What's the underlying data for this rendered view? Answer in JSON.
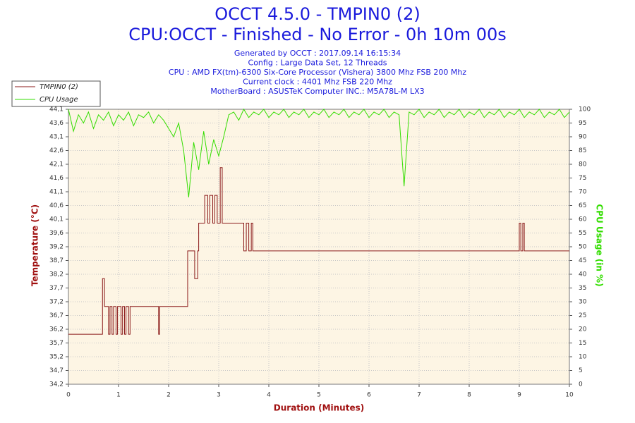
{
  "chart_data": {
    "type": "line",
    "title": "OCCT 4.5.0 - TMPIN0 (2)",
    "subtitle": "CPU:OCCT - Finished - No Error - 0h 10m 00s",
    "info": [
      "Generated by OCCT : 2017.09.14 16:15:34",
      "Config : Large Data Set, 12 Threads",
      "CPU : AMD FX(tm)-6300 Six-Core Processor (Vishera) 3800 Mhz FSB 200 Mhz",
      "Current clock : 4401 Mhz FSB 220 Mhz",
      "MotherBoard : ASUSTeK Computer INC.: M5A78L-M LX3"
    ],
    "xlabel": "Duration (Minutes)",
    "ylabel": "Temperature (°C)",
    "y2label": "CPU Usage (in %)",
    "xlim": [
      0,
      10
    ],
    "xticks": [
      0,
      1,
      2,
      3,
      4,
      5,
      6,
      7,
      8,
      9,
      10
    ],
    "ylim": [
      34.2,
      44.1
    ],
    "yticks": [
      {
        "value": 34.2,
        "label": "34,2"
      },
      {
        "value": 34.695,
        "label": "34,7"
      },
      {
        "value": 35.19,
        "label": "35,2"
      },
      {
        "value": 35.685,
        "label": "35,7"
      },
      {
        "value": 36.18,
        "label": "36,2"
      },
      {
        "value": 36.675,
        "label": "36,7"
      },
      {
        "value": 37.17,
        "label": "37,2"
      },
      {
        "value": 37.665,
        "label": "37,7"
      },
      {
        "value": 38.16,
        "label": "38,2"
      },
      {
        "value": 38.655,
        "label": "38,7"
      },
      {
        "value": 39.15,
        "label": "39,2"
      },
      {
        "value": 39.645,
        "label": "39,6"
      },
      {
        "value": 40.14,
        "label": "40,1"
      },
      {
        "value": 40.635,
        "label": "40,6"
      },
      {
        "value": 41.13,
        "label": "41,1"
      },
      {
        "value": 41.625,
        "label": "41,6"
      },
      {
        "value": 42.12,
        "label": "42,1"
      },
      {
        "value": 42.615,
        "label": "42,6"
      },
      {
        "value": 43.11,
        "label": "43,1"
      },
      {
        "value": 43.605,
        "label": "43,6"
      },
      {
        "value": 44.1,
        "label": "44,1"
      }
    ],
    "y2lim": [
      0,
      100
    ],
    "y2ticks": [
      0,
      5,
      10,
      15,
      20,
      25,
      30,
      35,
      40,
      45,
      50,
      55,
      60,
      65,
      70,
      75,
      80,
      85,
      90,
      95,
      100
    ],
    "grid": true,
    "legend": "top-left",
    "series": [
      {
        "name": "TMPIN0 (2)",
        "color": "#8b1a1a",
        "axis": "y",
        "x": [
          0,
          0.68,
          0.68,
          0.72,
          0.72,
          0.8,
          0.8,
          0.83,
          0.83,
          0.87,
          0.87,
          0.9,
          0.9,
          0.95,
          0.95,
          0.98,
          0.98,
          1.05,
          1.05,
          1.08,
          1.08,
          1.12,
          1.12,
          1.15,
          1.15,
          1.2,
          1.2,
          1.23,
          1.23,
          1.8,
          1.8,
          1.82,
          1.82,
          2.38,
          2.38,
          2.52,
          2.52,
          2.58,
          2.58,
          2.6,
          2.6,
          2.72,
          2.72,
          2.78,
          2.78,
          2.82,
          2.82,
          2.88,
          2.88,
          2.92,
          2.92,
          2.97,
          2.97,
          3.03,
          3.03,
          3.07,
          3.07,
          3.5,
          3.5,
          3.55,
          3.55,
          3.6,
          3.6,
          3.65,
          3.65,
          3.68,
          3.68,
          9.0,
          9.0,
          9.03,
          9.03,
          9.07,
          9.07,
          9.1,
          9.1,
          10
        ],
        "values": [
          36,
          36,
          38,
          38,
          37,
          37,
          36,
          36,
          37,
          37,
          36,
          36,
          37,
          37,
          36,
          36,
          37,
          37,
          36,
          36,
          37,
          37,
          36,
          36,
          37,
          37,
          36,
          36,
          37,
          37,
          36,
          36,
          37,
          37,
          39,
          39,
          38,
          38,
          39,
          39,
          40,
          40,
          41,
          41,
          40,
          40,
          41,
          41,
          40,
          40,
          41,
          41,
          40,
          40,
          42,
          42,
          40,
          40,
          39,
          39,
          40,
          40,
          39,
          39,
          40,
          40,
          39,
          39,
          40,
          40,
          39,
          39,
          40,
          40,
          39,
          39
        ]
      },
      {
        "name": "CPU Usage",
        "color": "#33dd00",
        "axis": "y2",
        "x": [
          0,
          0.1,
          0.2,
          0.3,
          0.4,
          0.5,
          0.6,
          0.7,
          0.8,
          0.9,
          1,
          1.1,
          1.2,
          1.3,
          1.4,
          1.5,
          1.6,
          1.7,
          1.8,
          1.9,
          2,
          2.1,
          2.2,
          2.3,
          2.4,
          2.5,
          2.6,
          2.7,
          2.8,
          2.9,
          3,
          3.1,
          3.2,
          3.3,
          3.4,
          3.5,
          3.6,
          3.7,
          3.8,
          3.9,
          4,
          4.1,
          4.2,
          4.3,
          4.4,
          4.5,
          4.6,
          4.7,
          4.8,
          4.9,
          5,
          5.1,
          5.2,
          5.3,
          5.4,
          5.5,
          5.6,
          5.7,
          5.8,
          5.9,
          6,
          6.1,
          6.2,
          6.3,
          6.4,
          6.5,
          6.6,
          6.7,
          6.8,
          6.9,
          7,
          7.1,
          7.2,
          7.3,
          7.4,
          7.5,
          7.6,
          7.7,
          7.8,
          7.9,
          8,
          8.1,
          8.2,
          8.3,
          8.4,
          8.5,
          8.6,
          8.7,
          8.8,
          8.9,
          9,
          9.1,
          9.2,
          9.3,
          9.4,
          9.5,
          9.6,
          9.7,
          9.8,
          9.9,
          10
        ],
        "values": [
          100,
          92,
          98,
          95,
          99,
          93,
          98,
          96,
          99,
          94,
          98,
          96,
          99,
          94,
          98,
          97,
          99,
          95,
          98,
          96,
          93,
          90,
          95,
          85,
          68,
          88,
          78,
          92,
          80,
          89,
          83,
          90,
          98,
          99,
          96,
          100,
          97,
          99,
          98,
          100,
          97,
          99,
          98,
          100,
          97,
          99,
          98,
          100,
          97,
          99,
          98,
          100,
          97,
          99,
          98,
          100,
          97,
          99,
          98,
          100,
          97,
          99,
          98,
          100,
          97,
          99,
          98,
          72,
          99,
          98,
          100,
          97,
          99,
          98,
          100,
          97,
          99,
          98,
          100,
          97,
          99,
          98,
          100,
          97,
          99,
          98,
          100,
          97,
          99,
          98,
          100,
          97,
          99,
          98,
          100,
          97,
          99,
          98,
          100,
          97,
          99
        ]
      }
    ]
  }
}
